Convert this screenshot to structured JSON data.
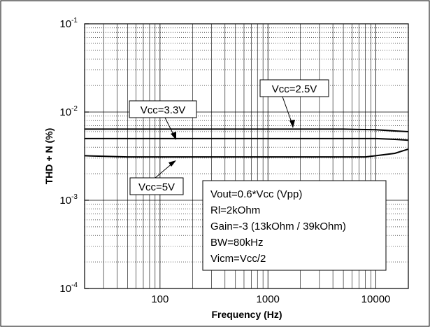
{
  "chart_data": {
    "type": "line",
    "title": "",
    "xlabel": "Frequency (Hz)",
    "ylabel": "THD + N (%)",
    "x_scale": "log",
    "y_scale": "log",
    "xlim": [
      20,
      20000
    ],
    "ylim": [
      0.0001,
      0.1
    ],
    "grid": true,
    "x_ticks": [
      {
        "value": 100,
        "label": "100"
      },
      {
        "value": 1000,
        "label": "1000"
      },
      {
        "value": 10000,
        "label": "10000"
      }
    ],
    "y_ticks": [
      {
        "value": 0.1,
        "base": "10",
        "exp": "-1"
      },
      {
        "value": 0.01,
        "base": "10",
        "exp": "-2"
      },
      {
        "value": 0.001,
        "base": "10",
        "exp": "-3"
      },
      {
        "value": 0.0001,
        "base": "10",
        "exp": "-4"
      }
    ],
    "series": [
      {
        "name": "Vcc=2.5V",
        "x": [
          20,
          50,
          100,
          200,
          500,
          1000,
          2000,
          5000,
          10000,
          15000,
          20000
        ],
        "y": [
          0.0064,
          0.0064,
          0.0064,
          0.0064,
          0.0064,
          0.0064,
          0.0064,
          0.0064,
          0.0063,
          0.0061,
          0.006
        ]
      },
      {
        "name": "Vcc=3.3V",
        "x": [
          20,
          50,
          100,
          200,
          500,
          1000,
          2000,
          5000,
          10000,
          15000,
          20000
        ],
        "y": [
          0.005,
          0.005,
          0.005,
          0.005,
          0.005,
          0.005,
          0.005,
          0.005,
          0.005,
          0.0049,
          0.0048
        ]
      },
      {
        "name": "Vcc=5V",
        "x": [
          20,
          50,
          100,
          200,
          500,
          1000,
          2000,
          5000,
          8000,
          10000,
          15000,
          20000
        ],
        "y": [
          0.0032,
          0.0031,
          0.0031,
          0.0031,
          0.0031,
          0.0031,
          0.0031,
          0.0031,
          0.0031,
          0.0032,
          0.0034,
          0.0038
        ]
      }
    ],
    "annotations": {
      "vcc25": "Vcc=2.5V",
      "vcc33": "Vcc=3.3V",
      "vcc5": "Vcc=5V"
    },
    "info_box": [
      "Vout=0.6*Vcc (Vpp)",
      "Rl=2kOhm",
      "Gain=-3 (13kOhm / 39kOhm)",
      "BW=80kHz",
      "Vicm=Vcc/2"
    ]
  }
}
